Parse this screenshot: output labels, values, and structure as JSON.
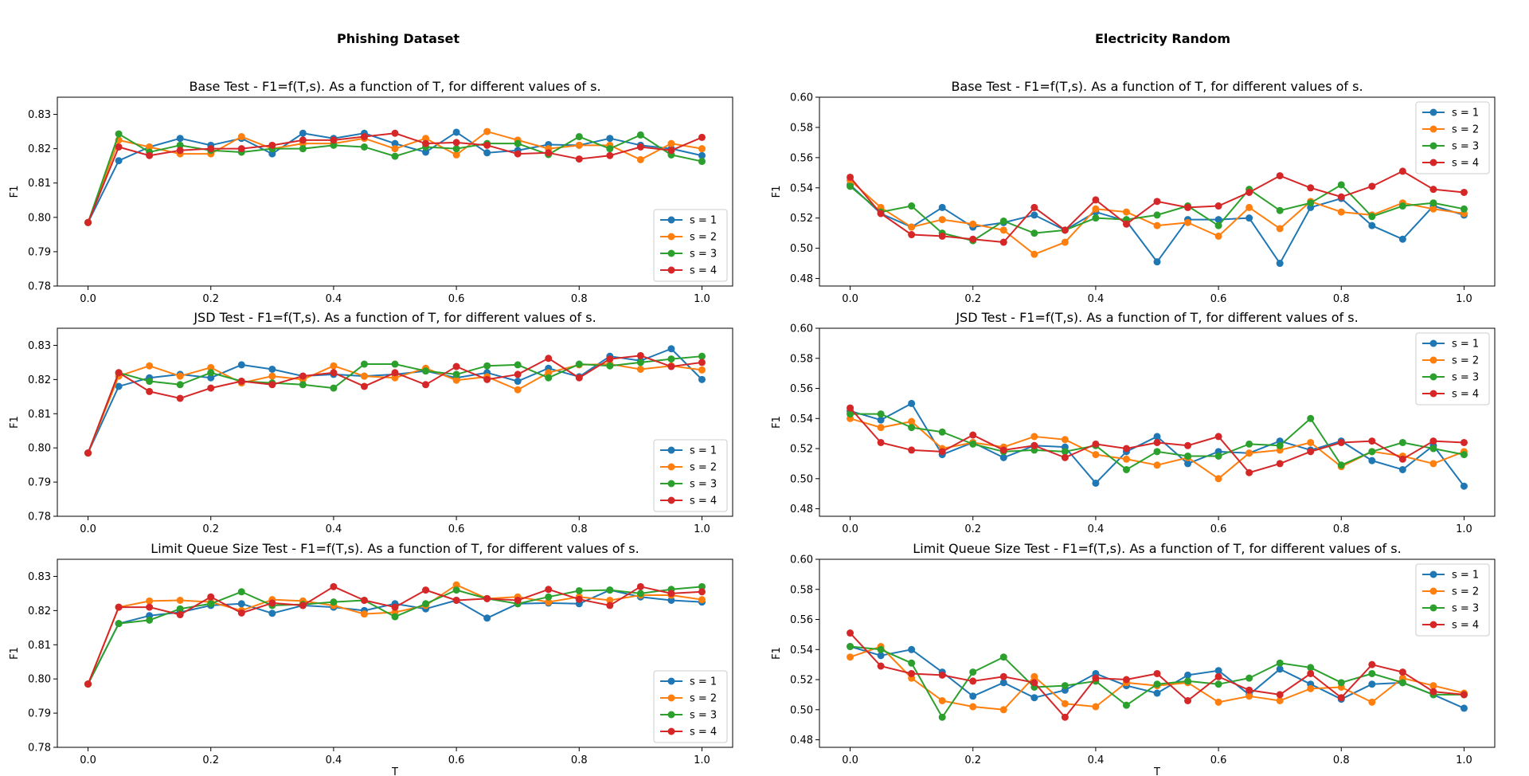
{
  "columns": [
    {
      "title": "Phishing Dataset"
    },
    {
      "title": "Electricity Random"
    }
  ],
  "colors": [
    "#1f77b4",
    "#ff7f0e",
    "#2ca02c",
    "#d62728"
  ],
  "chart_data": [
    {
      "type": "line",
      "title": "Base Test - F1=f(T,s). As a function of T, for different values of s.",
      "xlabel": "",
      "ylabel": "F1",
      "xlim": [
        -0.05,
        1.05
      ],
      "ylim": [
        0.78,
        0.835
      ],
      "xticks": [
        "0.0",
        "0.2",
        "0.4",
        "0.6",
        "0.8",
        "1.0"
      ],
      "yticks": [
        "0.78",
        "0.79",
        "0.80",
        "0.81",
        "0.82",
        "0.83"
      ],
      "legend_position": "lower-right",
      "x": [
        0.0,
        0.05,
        0.1,
        0.15,
        0.2,
        0.25,
        0.3,
        0.35,
        0.4,
        0.45,
        0.5,
        0.55,
        0.6,
        0.65,
        0.7,
        0.75,
        0.8,
        0.85,
        0.9,
        0.95,
        1.0
      ],
      "series": [
        {
          "name": "s = 1",
          "values": [
            0.7985,
            0.8165,
            0.8205,
            0.823,
            0.821,
            0.823,
            0.8185,
            0.8245,
            0.823,
            0.8245,
            0.8215,
            0.819,
            0.8248,
            0.8188,
            0.8195,
            0.8212,
            0.821,
            0.823,
            0.821,
            0.82,
            0.818
          ]
        },
        {
          "name": "s = 2",
          "values": [
            0.7985,
            0.8225,
            0.8205,
            0.8185,
            0.8185,
            0.8235,
            0.82,
            0.8215,
            0.8215,
            0.823,
            0.82,
            0.823,
            0.8182,
            0.825,
            0.8225,
            0.82,
            0.821,
            0.821,
            0.8168,
            0.8215,
            0.82
          ]
        },
        {
          "name": "s = 3",
          "values": [
            0.7985,
            0.8243,
            0.819,
            0.821,
            0.8195,
            0.819,
            0.82,
            0.82,
            0.821,
            0.8205,
            0.8178,
            0.8205,
            0.82,
            0.8215,
            0.8215,
            0.8183,
            0.8235,
            0.82,
            0.824,
            0.8182,
            0.8163
          ]
        },
        {
          "name": "s = 4",
          "values": [
            0.7985,
            0.8205,
            0.818,
            0.8195,
            0.82,
            0.82,
            0.821,
            0.8225,
            0.8225,
            0.8235,
            0.8245,
            0.8215,
            0.8218,
            0.821,
            0.8185,
            0.8188,
            0.817,
            0.818,
            0.8205,
            0.8195,
            0.8233
          ]
        }
      ]
    },
    {
      "type": "line",
      "title": "Base Test - F1=f(T,s). As a function of T, for different values of s.",
      "xlabel": "",
      "ylabel": "F1",
      "xlim": [
        -0.05,
        1.05
      ],
      "ylim": [
        0.475,
        0.6
      ],
      "xticks": [
        "0.0",
        "0.2",
        "0.4",
        "0.6",
        "0.8",
        "1.0"
      ],
      "yticks": [
        "0.48",
        "0.50",
        "0.52",
        "0.54",
        "0.56",
        "0.58",
        "0.60"
      ],
      "legend_position": "upper-right",
      "x": [
        0.0,
        0.05,
        0.1,
        0.15,
        0.2,
        0.25,
        0.3,
        0.35,
        0.4,
        0.45,
        0.5,
        0.55,
        0.6,
        0.65,
        0.7,
        0.75,
        0.8,
        0.85,
        0.9,
        0.95,
        1.0
      ],
      "series": [
        {
          "name": "s = 1",
          "values": [
            0.542,
            0.523,
            0.514,
            0.527,
            0.514,
            0.517,
            0.522,
            0.512,
            0.524,
            0.518,
            0.491,
            0.519,
            0.519,
            0.52,
            0.49,
            0.527,
            0.533,
            0.515,
            0.506,
            0.528,
            0.522
          ]
        },
        {
          "name": "s = 2",
          "values": [
            0.545,
            0.527,
            0.514,
            0.519,
            0.516,
            0.512,
            0.496,
            0.504,
            0.526,
            0.524,
            0.515,
            0.517,
            0.508,
            0.527,
            0.513,
            0.531,
            0.524,
            0.522,
            0.53,
            0.526,
            0.523
          ]
        },
        {
          "name": "s = 3",
          "values": [
            0.541,
            0.524,
            0.528,
            0.51,
            0.505,
            0.518,
            0.51,
            0.512,
            0.52,
            0.519,
            0.522,
            0.528,
            0.515,
            0.539,
            0.525,
            0.53,
            0.542,
            0.521,
            0.528,
            0.53,
            0.526
          ]
        },
        {
          "name": "s = 4",
          "values": [
            0.547,
            0.523,
            0.509,
            0.508,
            0.506,
            0.504,
            0.527,
            0.512,
            0.532,
            0.516,
            0.531,
            0.527,
            0.528,
            0.537,
            0.548,
            0.54,
            0.534,
            0.541,
            0.551,
            0.539,
            0.537
          ]
        }
      ]
    },
    {
      "type": "line",
      "title": "JSD Test - F1=f(T,s). As a function of T, for different values of s.",
      "xlabel": "",
      "ylabel": "F1",
      "xlim": [
        -0.05,
        1.05
      ],
      "ylim": [
        0.78,
        0.835
      ],
      "xticks": [
        "0.0",
        "0.2",
        "0.4",
        "0.6",
        "0.8",
        "1.0"
      ],
      "yticks": [
        "0.78",
        "0.79",
        "0.80",
        "0.81",
        "0.82",
        "0.83"
      ],
      "legend_position": "lower-right",
      "x": [
        0.0,
        0.05,
        0.1,
        0.15,
        0.2,
        0.25,
        0.3,
        0.35,
        0.4,
        0.45,
        0.5,
        0.55,
        0.6,
        0.65,
        0.7,
        0.75,
        0.8,
        0.85,
        0.9,
        0.95,
        1.0
      ],
      "series": [
        {
          "name": "s = 1",
          "values": [
            0.7985,
            0.818,
            0.8205,
            0.8215,
            0.8205,
            0.8243,
            0.823,
            0.821,
            0.8215,
            0.821,
            0.8215,
            0.8225,
            0.8205,
            0.822,
            0.8195,
            0.8233,
            0.8208,
            0.8268,
            0.8255,
            0.829,
            0.82
          ]
        },
        {
          "name": "s = 2",
          "values": [
            0.7985,
            0.821,
            0.824,
            0.821,
            0.8235,
            0.819,
            0.821,
            0.82,
            0.824,
            0.821,
            0.8205,
            0.8233,
            0.8198,
            0.8208,
            0.817,
            0.822,
            0.8243,
            0.8245,
            0.823,
            0.824,
            0.8228
          ]
        },
        {
          "name": "s = 3",
          "values": [
            0.7985,
            0.822,
            0.8195,
            0.8185,
            0.822,
            0.8195,
            0.819,
            0.8185,
            0.8175,
            0.8245,
            0.8245,
            0.8225,
            0.8215,
            0.824,
            0.8243,
            0.8205,
            0.8245,
            0.824,
            0.825,
            0.826,
            0.8268
          ]
        },
        {
          "name": "s = 4",
          "values": [
            0.7985,
            0.822,
            0.8165,
            0.8145,
            0.8175,
            0.8195,
            0.8185,
            0.821,
            0.822,
            0.818,
            0.822,
            0.8185,
            0.8238,
            0.82,
            0.8215,
            0.8262,
            0.8205,
            0.826,
            0.827,
            0.8238,
            0.825
          ]
        }
      ]
    },
    {
      "type": "line",
      "title": "JSD Test - F1=f(T,s). As a function of T, for different values of s.",
      "xlabel": "",
      "ylabel": "F1",
      "xlim": [
        -0.05,
        1.05
      ],
      "ylim": [
        0.475,
        0.6
      ],
      "xticks": [
        "0.0",
        "0.2",
        "0.4",
        "0.6",
        "0.8",
        "1.0"
      ],
      "yticks": [
        "0.48",
        "0.50",
        "0.52",
        "0.54",
        "0.56",
        "0.58",
        "0.60"
      ],
      "legend_position": "upper-right",
      "x": [
        0.0,
        0.05,
        0.1,
        0.15,
        0.2,
        0.25,
        0.3,
        0.35,
        0.4,
        0.45,
        0.5,
        0.55,
        0.6,
        0.65,
        0.7,
        0.75,
        0.8,
        0.85,
        0.9,
        0.95,
        1.0
      ],
      "series": [
        {
          "name": "s = 1",
          "values": [
            0.545,
            0.539,
            0.55,
            0.516,
            0.524,
            0.514,
            0.522,
            0.521,
            0.497,
            0.518,
            0.528,
            0.51,
            0.518,
            0.517,
            0.525,
            0.519,
            0.525,
            0.512,
            0.506,
            0.522,
            0.495
          ]
        },
        {
          "name": "s = 2",
          "values": [
            0.54,
            0.534,
            0.538,
            0.52,
            0.524,
            0.521,
            0.528,
            0.526,
            0.516,
            0.513,
            0.509,
            0.514,
            0.5,
            0.517,
            0.519,
            0.524,
            0.508,
            0.518,
            0.515,
            0.51,
            0.518
          ]
        },
        {
          "name": "s = 3",
          "values": [
            0.543,
            0.543,
            0.534,
            0.531,
            0.523,
            0.518,
            0.519,
            0.518,
            0.522,
            0.506,
            0.518,
            0.515,
            0.515,
            0.523,
            0.522,
            0.54,
            0.509,
            0.518,
            0.524,
            0.52,
            0.516
          ]
        },
        {
          "name": "s = 4",
          "values": [
            0.547,
            0.524,
            0.519,
            0.518,
            0.529,
            0.519,
            0.522,
            0.514,
            0.523,
            0.52,
            0.524,
            0.522,
            0.528,
            0.504,
            0.51,
            0.518,
            0.524,
            0.525,
            0.513,
            0.525,
            0.524
          ]
        }
      ]
    },
    {
      "type": "line",
      "title": "Limit Queue Size Test - F1=f(T,s). As a function of T, for different values of s.",
      "xlabel": "T",
      "ylabel": "F1",
      "xlim": [
        -0.05,
        1.05
      ],
      "ylim": [
        0.78,
        0.835
      ],
      "xticks": [
        "0.0",
        "0.2",
        "0.4",
        "0.6",
        "0.8",
        "1.0"
      ],
      "yticks": [
        "0.78",
        "0.79",
        "0.80",
        "0.81",
        "0.82",
        "0.83"
      ],
      "legend_position": "lower-right",
      "x": [
        0.0,
        0.05,
        0.1,
        0.15,
        0.2,
        0.25,
        0.3,
        0.35,
        0.4,
        0.45,
        0.5,
        0.55,
        0.6,
        0.65,
        0.7,
        0.75,
        0.8,
        0.85,
        0.9,
        0.95,
        1.0
      ],
      "series": [
        {
          "name": "s = 1",
          "values": [
            0.7985,
            0.8162,
            0.8185,
            0.8195,
            0.8215,
            0.822,
            0.8192,
            0.8215,
            0.821,
            0.82,
            0.822,
            0.8205,
            0.823,
            0.8178,
            0.822,
            0.8222,
            0.822,
            0.826,
            0.824,
            0.823,
            0.8225
          ]
        },
        {
          "name": "s = 2",
          "values": [
            0.7985,
            0.821,
            0.8228,
            0.823,
            0.8225,
            0.82,
            0.8232,
            0.8228,
            0.8215,
            0.819,
            0.8195,
            0.8215,
            0.8275,
            0.8235,
            0.824,
            0.8225,
            0.824,
            0.823,
            0.8245,
            0.8245,
            0.8232
          ]
        },
        {
          "name": "s = 3",
          "values": [
            0.7985,
            0.8162,
            0.8172,
            0.8205,
            0.822,
            0.8255,
            0.8215,
            0.8218,
            0.8225,
            0.823,
            0.8182,
            0.822,
            0.826,
            0.8235,
            0.822,
            0.824,
            0.8258,
            0.826,
            0.825,
            0.8262,
            0.827
          ]
        },
        {
          "name": "s = 4",
          "values": [
            0.7985,
            0.821,
            0.821,
            0.8188,
            0.824,
            0.8193,
            0.8222,
            0.8215,
            0.827,
            0.823,
            0.821,
            0.826,
            0.823,
            0.8235,
            0.823,
            0.8262,
            0.8233,
            0.8215,
            0.827,
            0.825,
            0.8255
          ]
        }
      ]
    },
    {
      "type": "line",
      "title": "Limit Queue Size Test - F1=f(T,s). As a function of T, for different values of s.",
      "xlabel": "T",
      "ylabel": "F1",
      "xlim": [
        -0.05,
        1.05
      ],
      "ylim": [
        0.475,
        0.6
      ],
      "xticks": [
        "0.0",
        "0.2",
        "0.4",
        "0.6",
        "0.8",
        "1.0"
      ],
      "yticks": [
        "0.48",
        "0.50",
        "0.52",
        "0.54",
        "0.56",
        "0.58",
        "0.60"
      ],
      "legend_position": "upper-right",
      "x": [
        0.0,
        0.05,
        0.1,
        0.15,
        0.2,
        0.25,
        0.3,
        0.35,
        0.4,
        0.45,
        0.5,
        0.55,
        0.6,
        0.65,
        0.7,
        0.75,
        0.8,
        0.85,
        0.9,
        0.95,
        1.0
      ],
      "series": [
        {
          "name": "s = 1",
          "values": [
            0.542,
            0.536,
            0.54,
            0.525,
            0.509,
            0.518,
            0.508,
            0.513,
            0.524,
            0.516,
            0.511,
            0.523,
            0.526,
            0.51,
            0.527,
            0.517,
            0.507,
            0.517,
            0.518,
            0.51,
            0.501
          ]
        },
        {
          "name": "s = 2",
          "values": [
            0.535,
            0.542,
            0.521,
            0.506,
            0.502,
            0.5,
            0.522,
            0.504,
            0.502,
            0.518,
            0.516,
            0.518,
            0.505,
            0.509,
            0.506,
            0.514,
            0.515,
            0.505,
            0.521,
            0.516,
            0.511
          ]
        },
        {
          "name": "s = 3",
          "values": [
            0.542,
            0.54,
            0.531,
            0.495,
            0.525,
            0.535,
            0.515,
            0.516,
            0.519,
            0.503,
            0.517,
            0.519,
            0.517,
            0.521,
            0.531,
            0.528,
            0.518,
            0.524,
            0.518,
            0.51,
            0.51
          ]
        },
        {
          "name": "s = 4",
          "values": [
            0.551,
            0.529,
            0.524,
            0.523,
            0.519,
            0.522,
            0.518,
            0.495,
            0.521,
            0.52,
            0.524,
            0.506,
            0.522,
            0.513,
            0.51,
            0.524,
            0.508,
            0.53,
            0.525,
            0.512,
            0.51
          ]
        }
      ]
    }
  ]
}
